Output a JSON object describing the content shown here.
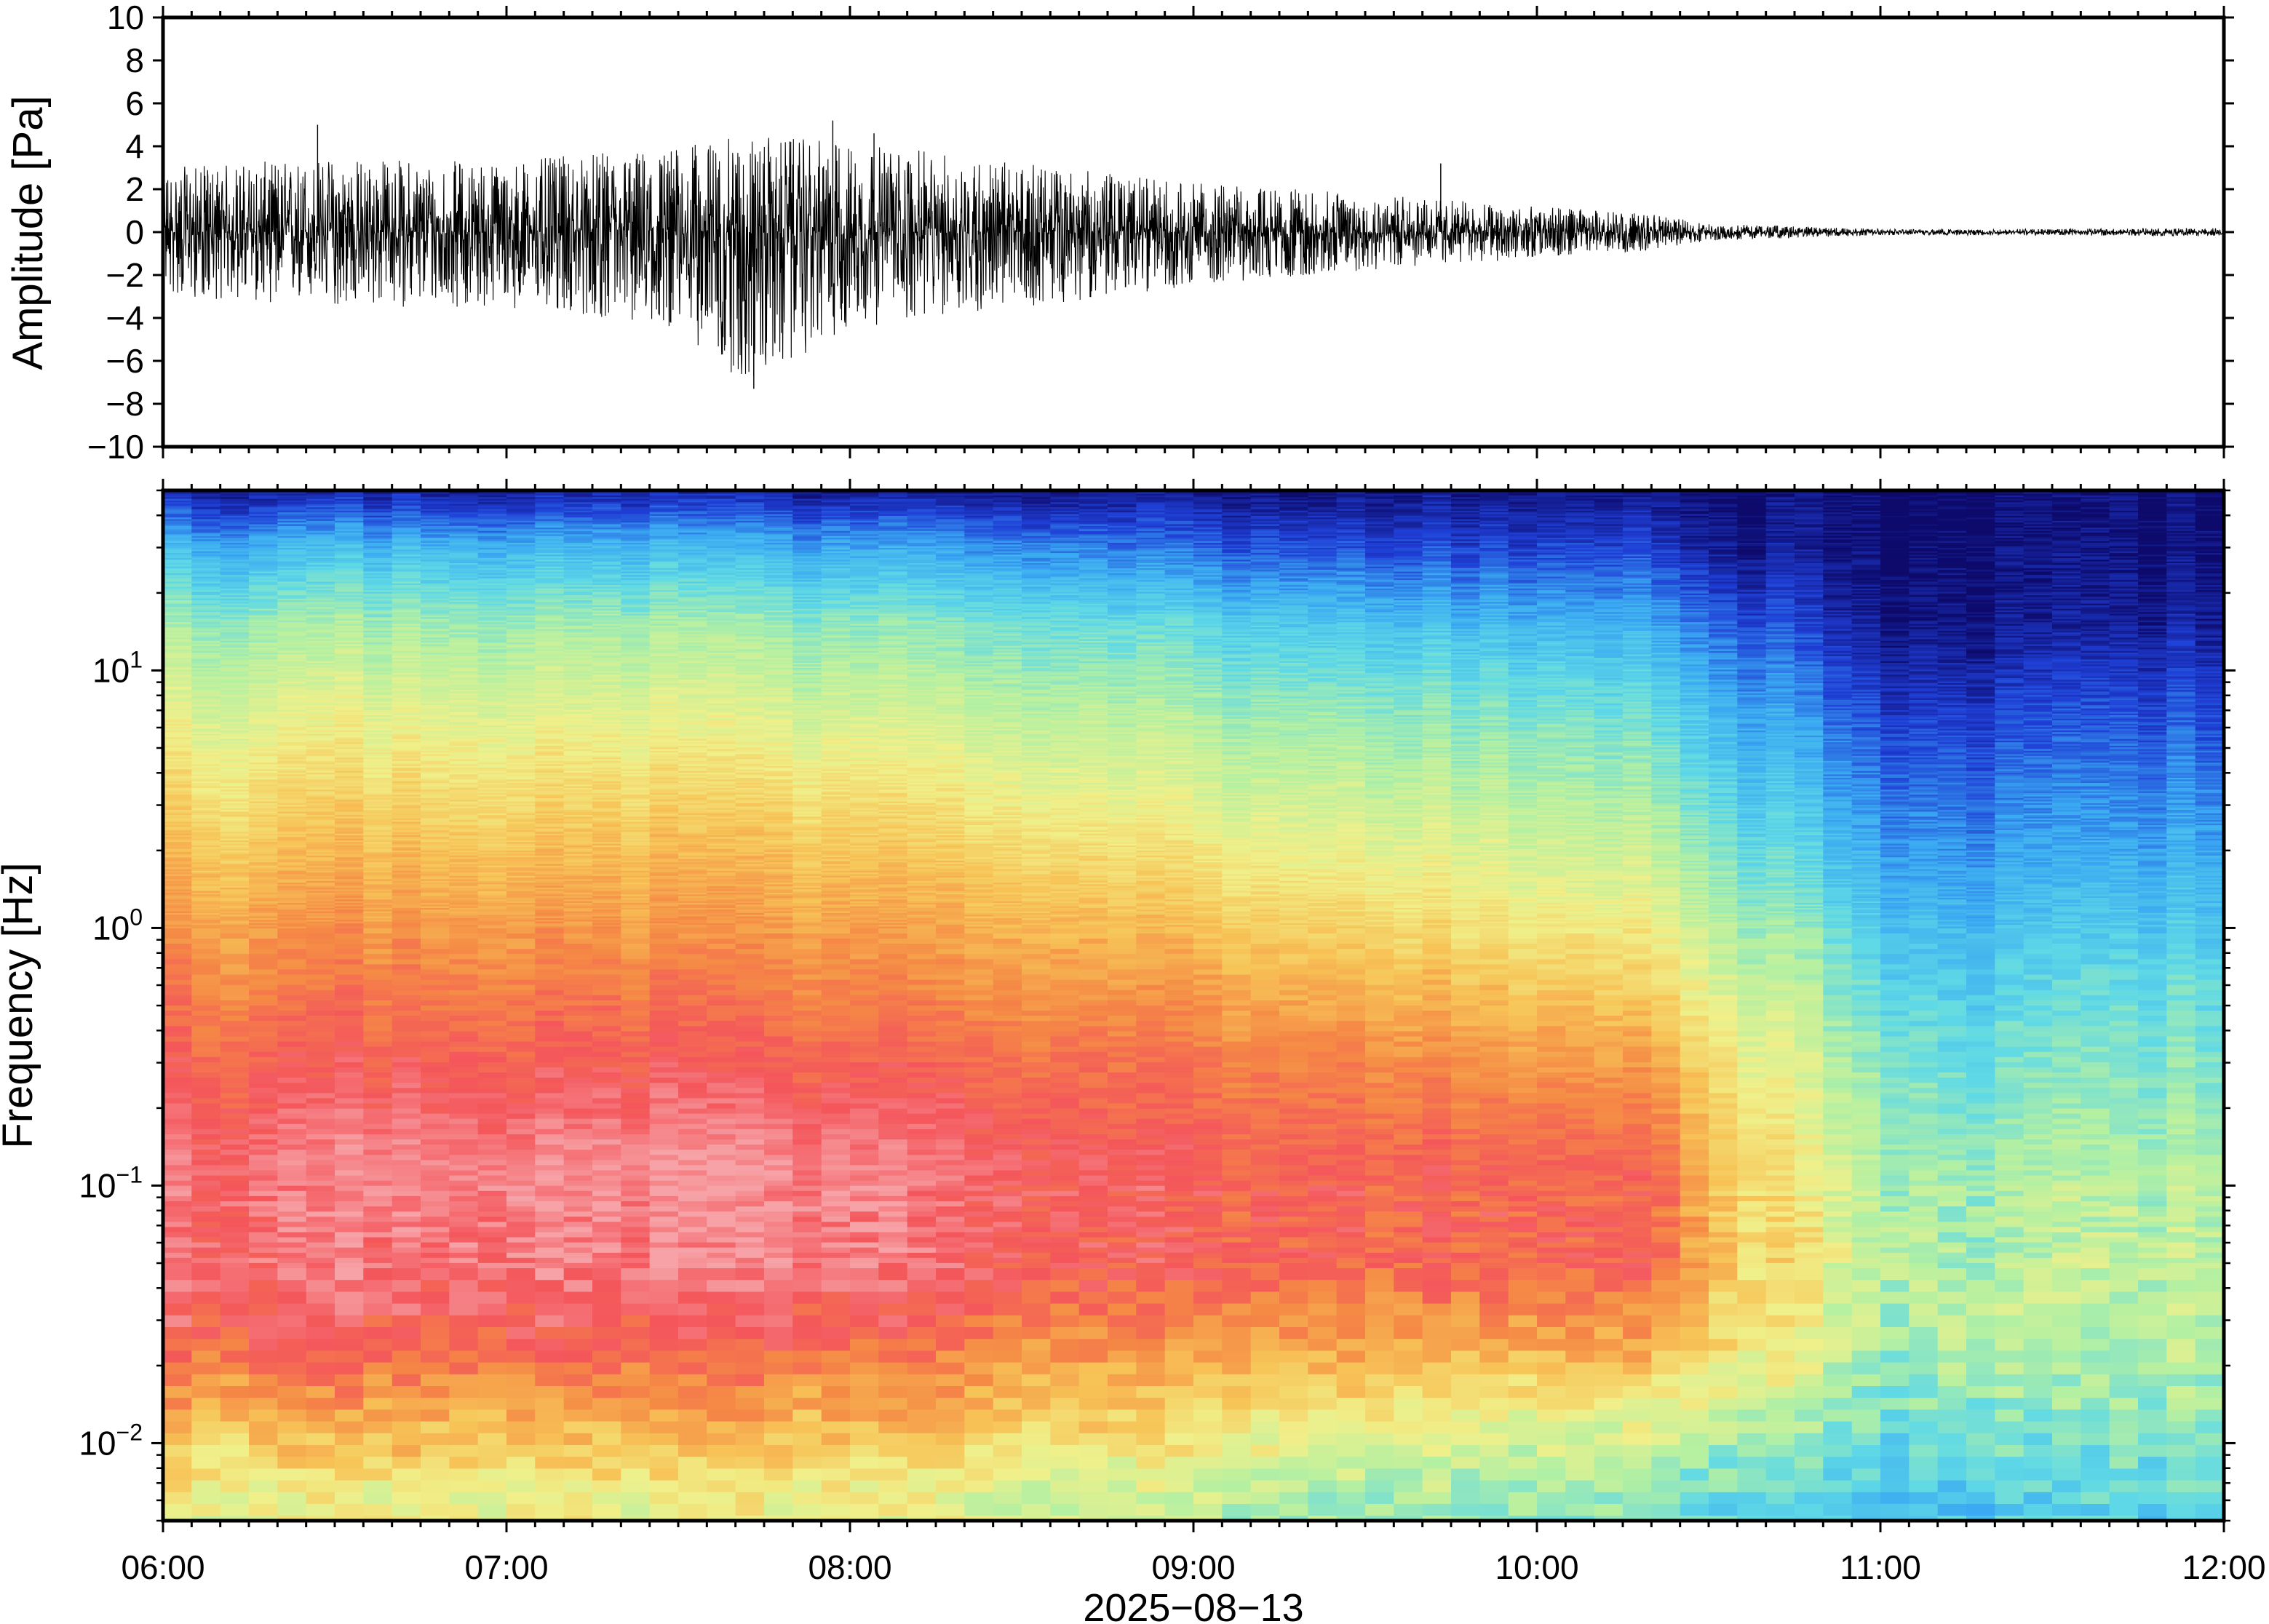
{
  "chart_data": [
    {
      "type": "line",
      "panel": "waveform",
      "ylabel": "Amplitude [Pa]",
      "ylim": [
        -10,
        10
      ],
      "yticks": [
        10,
        8,
        6,
        4,
        2,
        0,
        -2,
        -4,
        -6,
        -8,
        -10
      ],
      "ytick_labels": [
        "10",
        "8",
        "6",
        "4",
        "2",
        "0",
        "−2",
        "−4",
        "−6",
        "−8",
        "−10"
      ],
      "xlim": [
        "06:00",
        "12:00"
      ],
      "envelope": {
        "times_hours": [
          6.0,
          6.5,
          7.0,
          7.5,
          7.7,
          8.0,
          8.5,
          9.0,
          9.5,
          10.0,
          10.3,
          10.5,
          11.0,
          11.5,
          12.0
        ],
        "upper": [
          3.0,
          3.5,
          3.3,
          4.0,
          4.5,
          4.2,
          3.2,
          2.3,
          1.8,
          1.2,
          0.9,
          0.4,
          0.15,
          0.15,
          0.2
        ],
        "lower": [
          -3.0,
          -3.5,
          -3.5,
          -4.5,
          -7.3,
          -4.5,
          -3.5,
          -2.5,
          -1.8,
          -1.2,
          -0.9,
          -0.4,
          -0.15,
          -0.15,
          -0.2
        ]
      },
      "peaks": [
        {
          "t_hours": 6.45,
          "value": 5.0
        },
        {
          "t_hours": 7.72,
          "value": -7.3
        },
        {
          "t_hours": 7.95,
          "value": 5.2
        },
        {
          "t_hours": 8.07,
          "value": 4.6
        },
        {
          "t_hours": 9.72,
          "value": 3.2
        }
      ]
    },
    {
      "type": "heatmap",
      "panel": "spectrogram",
      "ylabel": "Frequency [Hz]",
      "yscale": "log",
      "ylim": [
        0.005,
        50
      ],
      "yticks": [
        0.01,
        0.1,
        1,
        10
      ],
      "ytick_labels": [
        {
          "base": "10",
          "exp": "−2"
        },
        {
          "base": "10",
          "exp": "−1"
        },
        {
          "base": "10",
          "exp": "0"
        },
        {
          "base": "10",
          "exp": "1"
        }
      ],
      "xlabel": "2025−08−13",
      "xticks": [
        "06:00",
        "07:00",
        "08:00",
        "09:00",
        "10:00",
        "11:00",
        "12:00"
      ],
      "colormap": [
        "#0d0a6b",
        "#1f3fd6",
        "#3aa9f2",
        "#5fd9e6",
        "#b4f0a2",
        "#f0f08a",
        "#f7c457",
        "#f58a45",
        "#f4565b",
        "#f6a2a6"
      ],
      "power_profiles": {
        "frequencies_hz": [
          50,
          30,
          15,
          7,
          3,
          1.5,
          0.7,
          0.3,
          0.12,
          0.05,
          0.025,
          0.012,
          0.006
        ],
        "times_hours": [
          6.0,
          7.0,
          8.0,
          8.5,
          9.0,
          9.5,
          10.0,
          10.35,
          10.5,
          10.75,
          11.0,
          11.25,
          11.5,
          12.0
        ],
        "levels": [
          [
            0.05,
            0.25,
            0.42,
            0.52,
            0.62,
            0.7,
            0.78,
            0.86,
            0.93,
            0.92,
            0.87,
            0.68,
            0.55
          ],
          [
            0.05,
            0.26,
            0.43,
            0.53,
            0.63,
            0.71,
            0.79,
            0.88,
            0.97,
            0.95,
            0.88,
            0.7,
            0.56
          ],
          [
            0.05,
            0.24,
            0.41,
            0.51,
            0.62,
            0.7,
            0.78,
            0.87,
            0.97,
            0.96,
            0.86,
            0.7,
            0.55
          ],
          [
            0.04,
            0.21,
            0.38,
            0.48,
            0.58,
            0.67,
            0.75,
            0.85,
            0.92,
            0.9,
            0.8,
            0.66,
            0.52
          ],
          [
            0.03,
            0.16,
            0.33,
            0.44,
            0.53,
            0.62,
            0.72,
            0.82,
            0.88,
            0.87,
            0.76,
            0.61,
            0.48
          ],
          [
            0.02,
            0.12,
            0.28,
            0.4,
            0.49,
            0.57,
            0.67,
            0.78,
            0.86,
            0.85,
            0.73,
            0.55,
            0.42
          ],
          [
            0.02,
            0.1,
            0.24,
            0.36,
            0.45,
            0.52,
            0.62,
            0.74,
            0.84,
            0.84,
            0.71,
            0.52,
            0.4
          ],
          [
            0.01,
            0.09,
            0.22,
            0.33,
            0.42,
            0.49,
            0.59,
            0.72,
            0.84,
            0.84,
            0.7,
            0.5,
            0.38
          ],
          [
            0.01,
            0.05,
            0.17,
            0.27,
            0.35,
            0.43,
            0.51,
            0.61,
            0.69,
            0.68,
            0.64,
            0.47,
            0.35
          ],
          [
            0.0,
            0.02,
            0.1,
            0.19,
            0.27,
            0.34,
            0.43,
            0.5,
            0.56,
            0.58,
            0.55,
            0.43,
            0.32
          ],
          [
            0.0,
            0.01,
            0.03,
            0.11,
            0.19,
            0.25,
            0.32,
            0.39,
            0.44,
            0.47,
            0.43,
            0.36,
            0.28
          ],
          [
            0.0,
            0.01,
            0.03,
            0.1,
            0.17,
            0.23,
            0.29,
            0.35,
            0.41,
            0.44,
            0.47,
            0.38,
            0.3
          ],
          [
            0.0,
            0.01,
            0.03,
            0.11,
            0.18,
            0.24,
            0.31,
            0.37,
            0.43,
            0.46,
            0.44,
            0.37,
            0.3
          ],
          [
            0.0,
            0.01,
            0.04,
            0.12,
            0.19,
            0.25,
            0.32,
            0.38,
            0.43,
            0.46,
            0.45,
            0.39,
            0.33
          ]
        ]
      }
    }
  ]
}
